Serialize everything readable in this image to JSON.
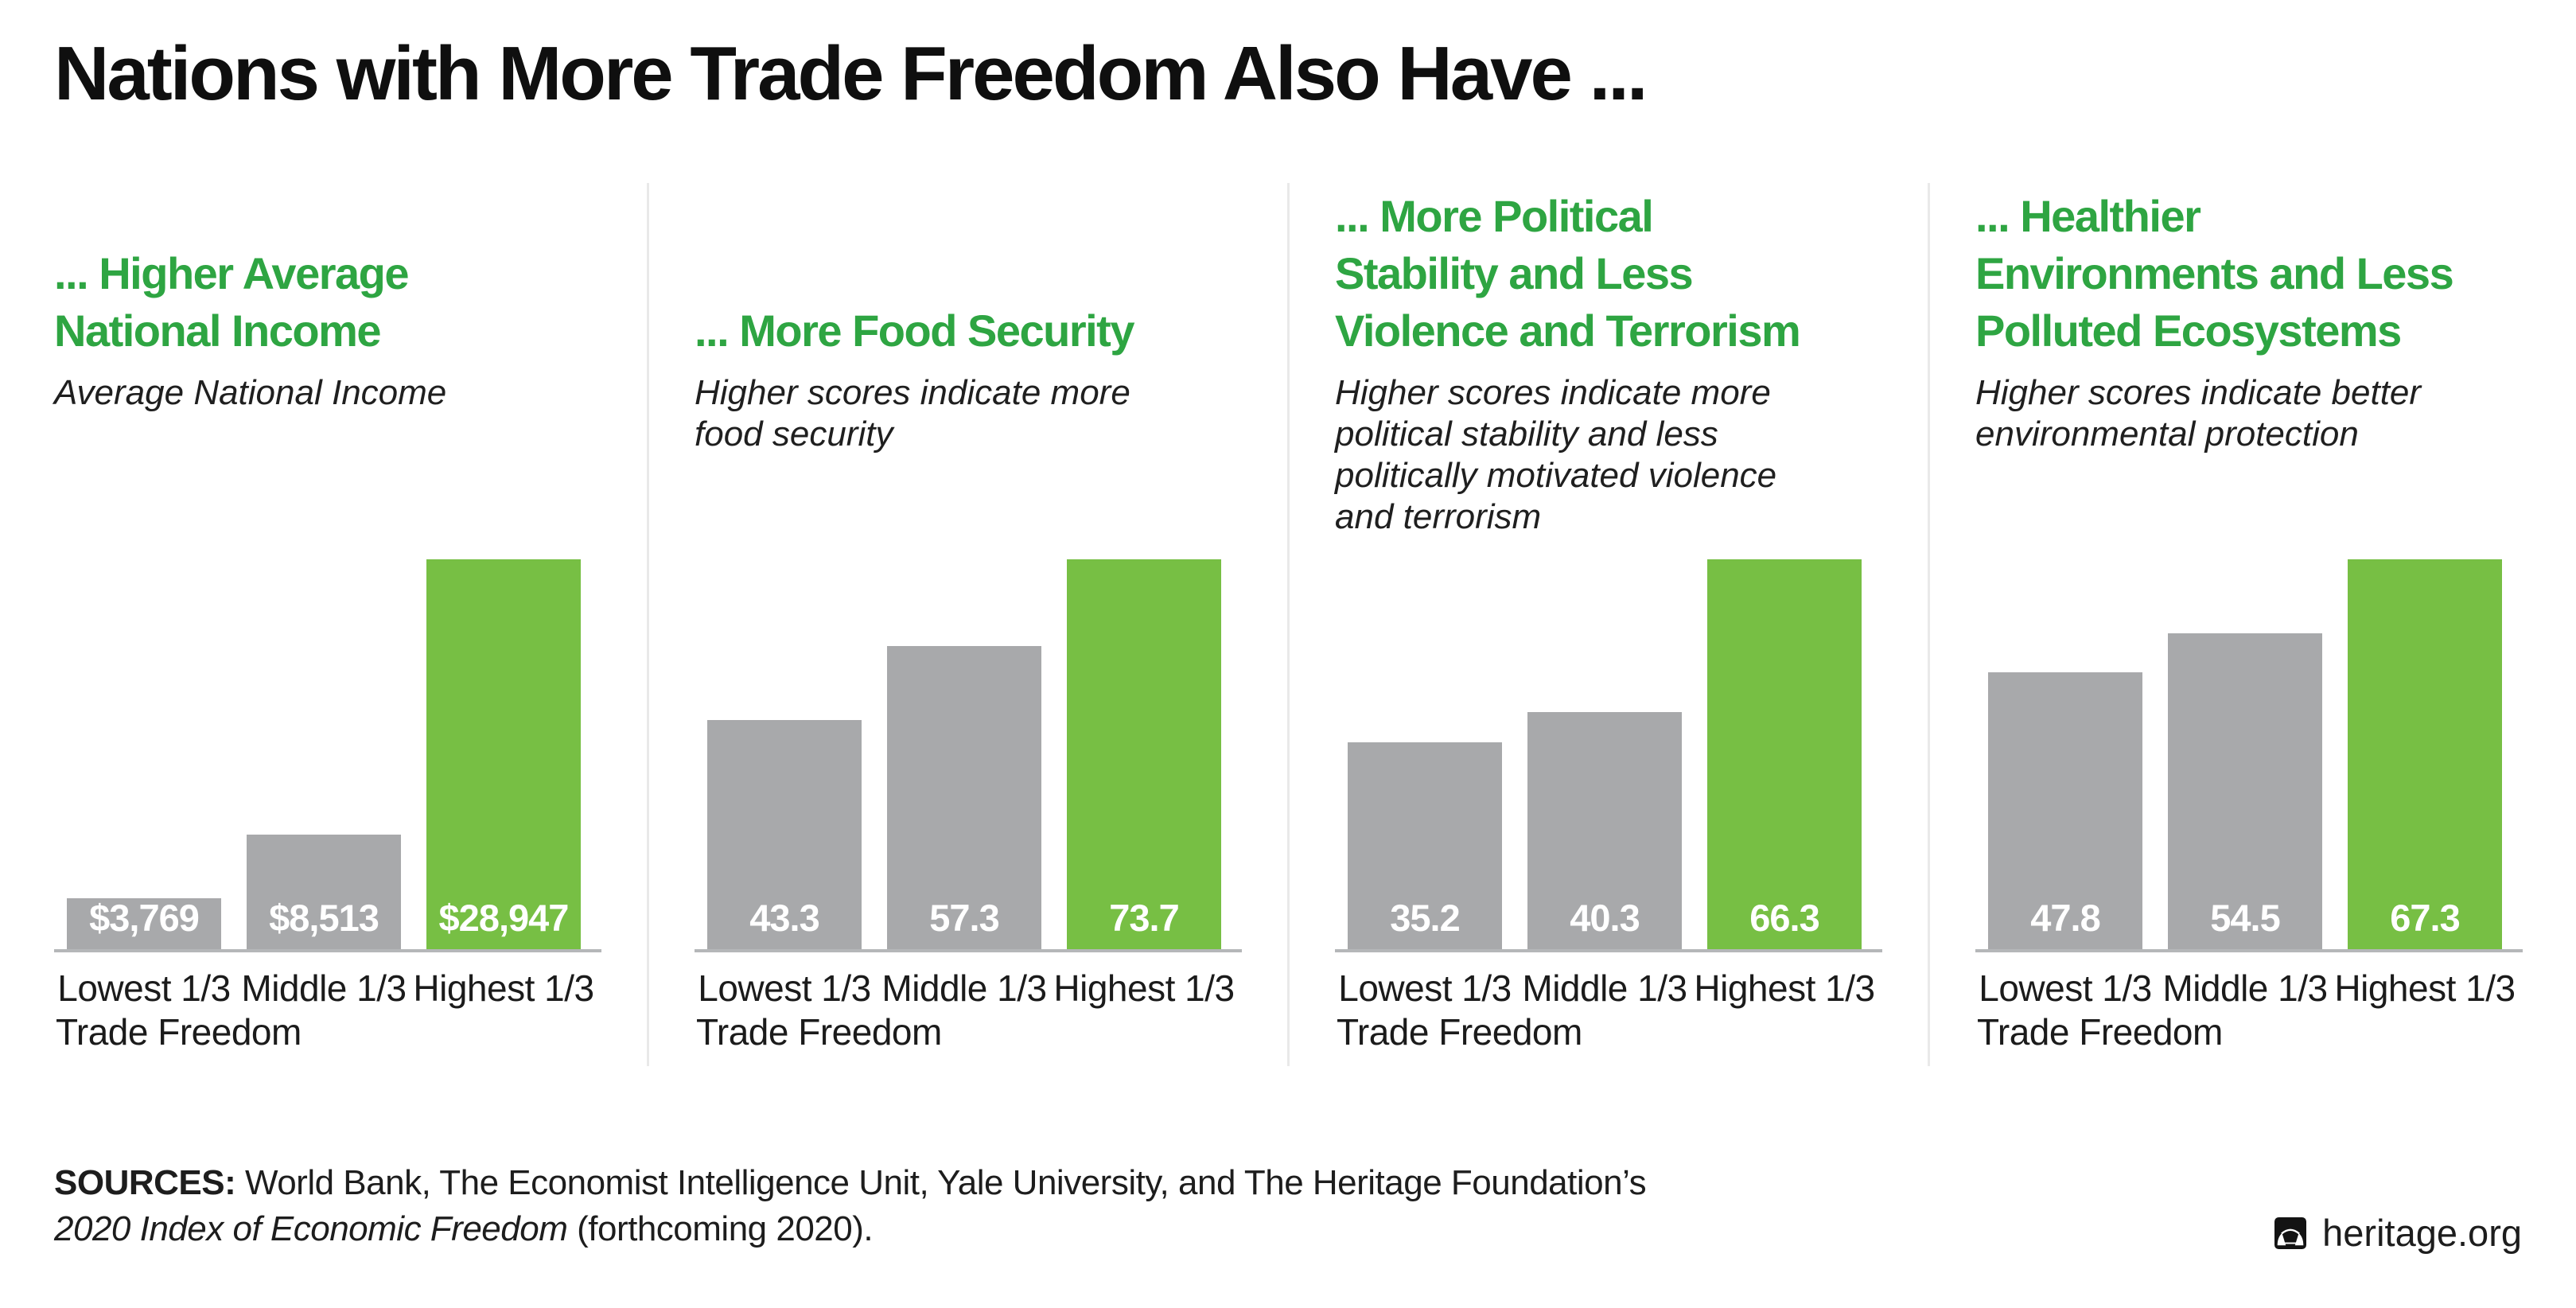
{
  "title": "Nations with More Trade Freedom Also Have ...",
  "colors": {
    "heading_green": "#2ea542",
    "bar_green": "#77bf44",
    "bar_gray": "#a8a9ab",
    "axis_line_gray": "#b5b7b9",
    "divider_gray": "#e9e9e9",
    "value_label_white": "#ffffff",
    "text_black": "#0f0f0f"
  },
  "chart_data": [
    {
      "type": "bar",
      "title": "... Higher Average\nNational Income",
      "subtitle": "Average National Income",
      "categories": [
        "Lowest 1/3",
        "Middle 1/3",
        "Highest 1/3"
      ],
      "x_axis_note": "Trade Freedom",
      "values": [
        3769,
        8513,
        28947
      ],
      "value_labels": [
        "$3,769",
        "$8,513",
        "$28,947"
      ],
      "bar_colors": [
        "gray",
        "gray",
        "green"
      ],
      "ylim": [
        0,
        28947
      ],
      "grid": false,
      "legend": false
    },
    {
      "type": "bar",
      "title": "... More Food Security",
      "subtitle": "Higher scores indicate more\nfood security",
      "categories": [
        "Lowest 1/3",
        "Middle 1/3",
        "Highest 1/3"
      ],
      "x_axis_note": "Trade Freedom",
      "values": [
        43.3,
        57.3,
        73.7
      ],
      "value_labels": [
        "43.3",
        "57.3",
        "73.7"
      ],
      "bar_colors": [
        "gray",
        "gray",
        "green"
      ],
      "ylim": [
        0,
        73.7
      ],
      "grid": false,
      "legend": false
    },
    {
      "type": "bar",
      "title": "... More Political\nStability and Less\nViolence and Terrorism",
      "subtitle": "Higher scores indicate more\npolitical stability and less\npolitically motivated violence\nand terrorism",
      "categories": [
        "Lowest 1/3",
        "Middle 1/3",
        "Highest 1/3"
      ],
      "x_axis_note": "Trade Freedom",
      "values": [
        35.2,
        40.3,
        66.3
      ],
      "value_labels": [
        "35.2",
        "40.3",
        "66.3"
      ],
      "bar_colors": [
        "gray",
        "gray",
        "green"
      ],
      "ylim": [
        0,
        66.3
      ],
      "grid": false,
      "legend": false
    },
    {
      "type": "bar",
      "title": "... Healthier\nEnvironments and Less\nPolluted Ecosystems",
      "subtitle": "Higher scores indicate better\nenvironmental protection",
      "categories": [
        "Lowest 1/3",
        "Middle 1/3",
        "Highest 1/3"
      ],
      "x_axis_note": "Trade Freedom",
      "values": [
        47.8,
        54.5,
        67.3
      ],
      "value_labels": [
        "47.8",
        "54.5",
        "67.3"
      ],
      "bar_colors": [
        "gray",
        "gray",
        "green"
      ],
      "ylim": [
        0,
        67.3
      ],
      "grid": false,
      "legend": false
    }
  ],
  "footer": {
    "sources_label": "SOURCES:",
    "sources_text": " World Bank, The Economist Intelligence Unit, Yale University, and The Heritage Foundation’s",
    "work_title_italic": "2020 Index of Economic Freedom",
    "work_title_rest": " (forthcoming 2020).",
    "brand": "heritage.org"
  }
}
